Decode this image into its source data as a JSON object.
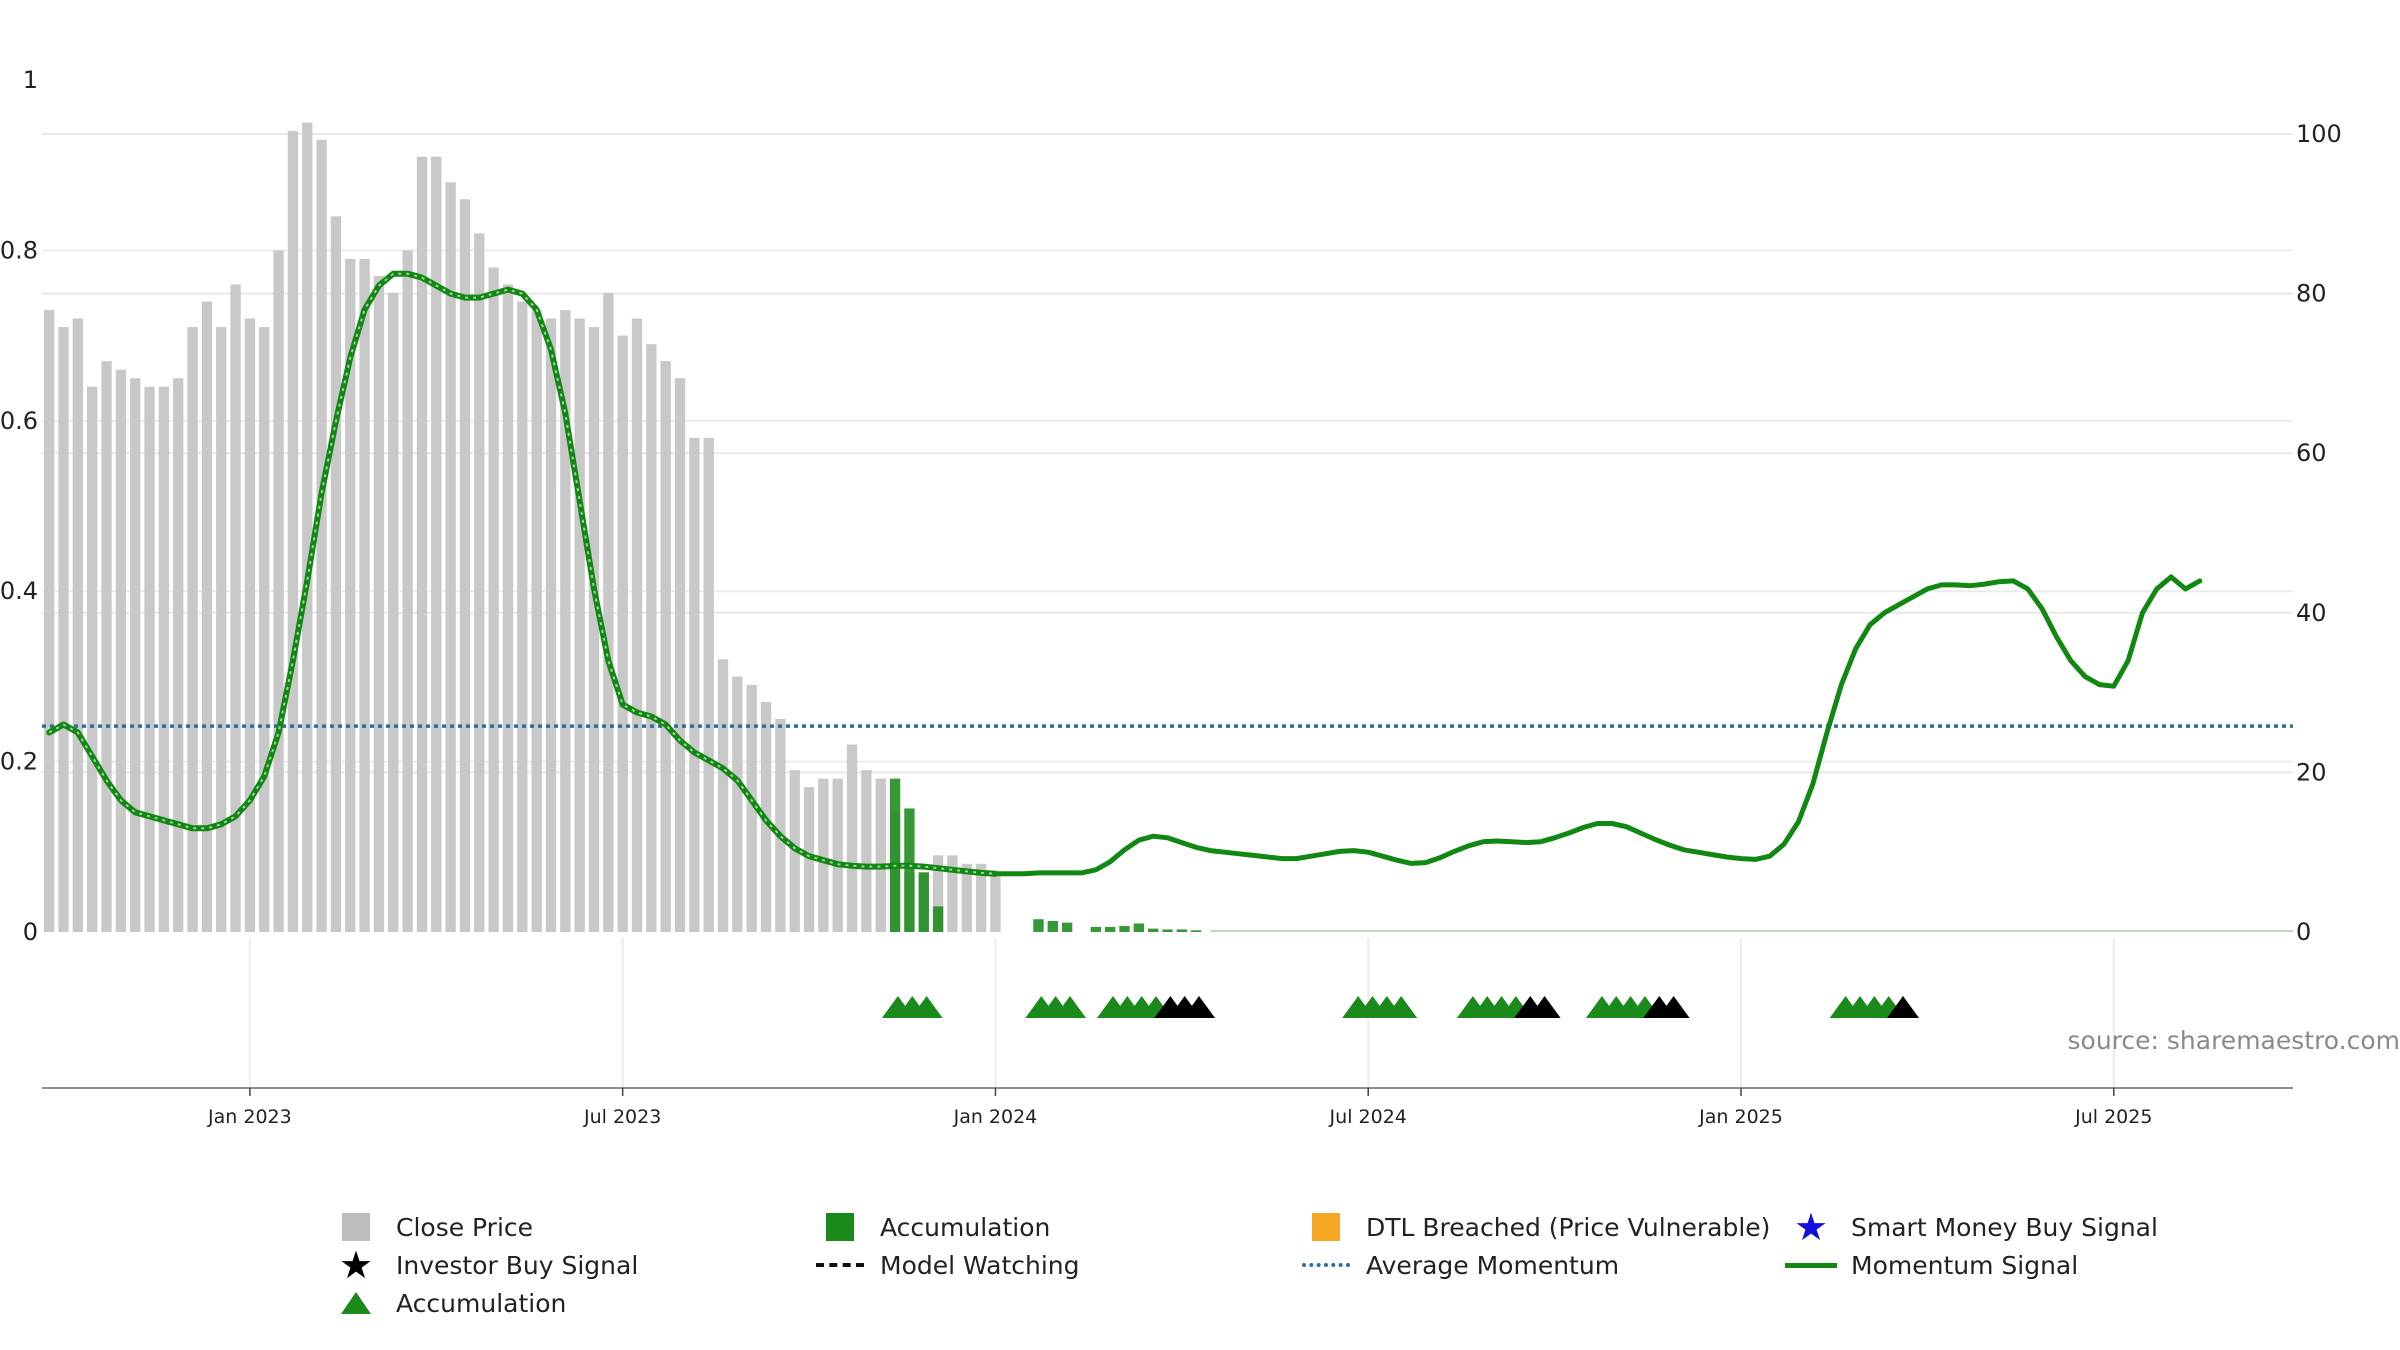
{
  "chart_data": {
    "type": "bar",
    "title": "",
    "source": "source: sharemaestro.com",
    "left_axis": {
      "ticks": [
        "0",
        "0.2",
        "0.4",
        "0.6",
        "0.8",
        "1"
      ],
      "range": [
        0,
        1
      ]
    },
    "right_axis": {
      "ticks": [
        "0",
        "20",
        "40",
        "60",
        "80",
        "100"
      ],
      "range": [
        0,
        100
      ]
    },
    "x_labels": [
      {
        "label": "Jan 2023",
        "week": 14
      },
      {
        "label": "Jul 2023",
        "week": 40
      },
      {
        "label": "Jan 2024",
        "week": 66
      },
      {
        "label": "Jul 2024",
        "week": 92
      },
      {
        "label": "Jan 2025",
        "week": 118
      },
      {
        "label": "Jul 2025",
        "week": 144
      }
    ],
    "weeks": 157,
    "close_price": [
      0.73,
      0.71,
      0.72,
      0.64,
      0.67,
      0.66,
      0.65,
      0.64,
      0.64,
      0.65,
      0.71,
      0.74,
      0.71,
      0.76,
      0.72,
      0.71,
      0.8,
      0.94,
      0.95,
      0.93,
      0.84,
      0.79,
      0.79,
      0.77,
      0.75,
      0.8,
      0.91,
      0.91,
      0.88,
      0.86,
      0.82,
      0.78,
      0.76,
      0.74,
      0.73,
      0.72,
      0.73,
      0.72,
      0.71,
      0.75,
      0.7,
      0.72,
      0.69,
      0.67,
      0.65,
      0.58,
      0.58,
      0.32,
      0.3,
      0.29,
      0.27,
      0.25,
      0.19,
      0.17,
      0.18,
      0.18,
      0.22,
      0.19,
      0.18,
      0.14,
      0.07,
      0.07,
      0.09,
      0.09,
      0.08,
      0.08,
      0.07
    ],
    "accumulation_bars": [
      {
        "week": 59,
        "value": 0.18
      },
      {
        "week": 60,
        "value": 0.145
      },
      {
        "week": 61,
        "value": 0.07
      },
      {
        "week": 62,
        "value": 0.03
      },
      {
        "week": 69,
        "value": 0.015
      },
      {
        "week": 70,
        "value": 0.013
      },
      {
        "week": 71,
        "value": 0.011
      },
      {
        "week": 73,
        "value": 0.006
      },
      {
        "week": 74,
        "value": 0.006
      },
      {
        "week": 75,
        "value": 0.007
      },
      {
        "week": 76,
        "value": 0.01
      },
      {
        "week": 77,
        "value": 0.004
      },
      {
        "week": 78,
        "value": 0.003
      },
      {
        "week": 79,
        "value": 0.003
      },
      {
        "week": 80,
        "value": 0.002
      }
    ],
    "average_momentum": 25.8,
    "momentum_signal": [
      [
        0,
        25
      ],
      [
        1,
        26
      ],
      [
        2,
        25
      ],
      [
        3,
        22
      ],
      [
        4,
        19
      ],
      [
        5,
        16.5
      ],
      [
        6,
        15
      ],
      [
        7,
        14.5
      ],
      [
        8,
        14
      ],
      [
        9,
        13.5
      ],
      [
        10,
        13
      ],
      [
        11,
        13
      ],
      [
        12,
        13.5
      ],
      [
        13,
        14.5
      ],
      [
        14,
        16.5
      ],
      [
        15,
        19.5
      ],
      [
        16,
        25
      ],
      [
        17,
        34
      ],
      [
        18,
        44
      ],
      [
        19,
        55
      ],
      [
        20,
        64
      ],
      [
        21,
        72
      ],
      [
        22,
        78
      ],
      [
        23,
        81
      ],
      [
        24,
        82.5
      ],
      [
        25,
        82.5
      ],
      [
        26,
        82
      ],
      [
        27,
        81
      ],
      [
        28,
        80
      ],
      [
        29,
        79.5
      ],
      [
        30,
        79.5
      ],
      [
        31,
        80
      ],
      [
        32,
        80.5
      ],
      [
        33,
        80
      ],
      [
        34,
        78
      ],
      [
        35,
        73
      ],
      [
        36,
        65
      ],
      [
        37,
        54
      ],
      [
        38,
        43
      ],
      [
        39,
        34
      ],
      [
        40,
        28.5
      ],
      [
        41,
        27.5
      ],
      [
        42,
        27
      ],
      [
        43,
        26
      ],
      [
        44,
        24
      ],
      [
        45,
        22.5
      ],
      [
        46,
        21.5
      ],
      [
        47,
        20.5
      ],
      [
        48,
        19
      ],
      [
        49,
        16.5
      ],
      [
        50,
        14
      ],
      [
        51,
        12
      ],
      [
        52,
        10.5
      ],
      [
        53,
        9.5
      ],
      [
        54,
        9
      ],
      [
        55,
        8.5
      ],
      [
        56,
        8.3
      ],
      [
        57,
        8.2
      ],
      [
        58,
        8.2
      ],
      [
        59,
        8.3
      ],
      [
        60,
        8.3
      ],
      [
        61,
        8.2
      ],
      [
        62,
        8
      ],
      [
        63,
        7.8
      ],
      [
        64,
        7.6
      ],
      [
        65,
        7.4
      ],
      [
        66,
        7.3
      ],
      [
        67,
        7.3
      ],
      [
        68,
        7.3
      ],
      [
        69,
        7.4
      ],
      [
        70,
        7.4
      ],
      [
        71,
        7.4
      ],
      [
        72,
        7.4
      ],
      [
        73,
        7.8
      ],
      [
        74,
        8.8
      ],
      [
        75,
        10.3
      ],
      [
        76,
        11.5
      ],
      [
        77,
        12
      ],
      [
        78,
        11.8
      ],
      [
        79,
        11.2
      ],
      [
        80,
        10.6
      ],
      [
        81,
        10.2
      ],
      [
        82,
        10
      ],
      [
        83,
        9.8
      ],
      [
        84,
        9.6
      ],
      [
        85,
        9.4
      ],
      [
        86,
        9.2
      ],
      [
        87,
        9.2
      ],
      [
        88,
        9.5
      ],
      [
        89,
        9.8
      ],
      [
        90,
        10.1
      ],
      [
        91,
        10.2
      ],
      [
        92,
        10
      ],
      [
        93,
        9.5
      ],
      [
        94,
        9
      ],
      [
        95,
        8.6
      ],
      [
        96,
        8.7
      ],
      [
        97,
        9.3
      ],
      [
        98,
        10.1
      ],
      [
        99,
        10.8
      ],
      [
        100,
        11.3
      ],
      [
        101,
        11.4
      ],
      [
        102,
        11.3
      ],
      [
        103,
        11.2
      ],
      [
        104,
        11.3
      ],
      [
        105,
        11.8
      ],
      [
        106,
        12.4
      ],
      [
        107,
        13.1
      ],
      [
        108,
        13.6
      ],
      [
        109,
        13.6
      ],
      [
        110,
        13.2
      ],
      [
        111,
        12.4
      ],
      [
        112,
        11.6
      ],
      [
        113,
        10.9
      ],
      [
        114,
        10.3
      ],
      [
        115,
        10
      ],
      [
        116,
        9.7
      ],
      [
        117,
        9.4
      ],
      [
        118,
        9.2
      ],
      [
        119,
        9.1
      ],
      [
        120,
        9.5
      ],
      [
        121,
        11
      ],
      [
        122,
        13.8
      ],
      [
        123,
        18.5
      ],
      [
        124,
        25
      ],
      [
        125,
        31
      ],
      [
        126,
        35.5
      ],
      [
        127,
        38.5
      ],
      [
        128,
        40
      ],
      [
        129,
        41
      ],
      [
        130,
        42
      ],
      [
        131,
        43
      ],
      [
        132,
        43.5
      ],
      [
        133,
        43.5
      ],
      [
        134,
        43.4
      ],
      [
        135,
        43.6
      ],
      [
        136,
        43.9
      ],
      [
        137,
        44
      ],
      [
        138,
        43
      ],
      [
        139,
        40.5
      ],
      [
        140,
        37
      ],
      [
        141,
        34
      ],
      [
        142,
        32
      ],
      [
        143,
        31
      ],
      [
        144,
        30.8
      ],
      [
        145,
        34
      ],
      [
        146,
        40
      ],
      [
        147,
        43
      ],
      [
        148,
        44.5
      ],
      [
        149,
        43
      ],
      [
        150,
        44
      ]
    ],
    "signals": [
      {
        "week": 59.2,
        "type": "accumulation"
      },
      {
        "week": 60.2,
        "type": "accumulation"
      },
      {
        "week": 61.2,
        "type": "accumulation"
      },
      {
        "week": 69.2,
        "type": "accumulation"
      },
      {
        "week": 70.2,
        "type": "accumulation"
      },
      {
        "week": 71.2,
        "type": "accumulation"
      },
      {
        "week": 74.2,
        "type": "accumulation"
      },
      {
        "week": 75.2,
        "type": "accumulation"
      },
      {
        "week": 76.2,
        "type": "accumulation"
      },
      {
        "week": 77.2,
        "type": "accumulation"
      },
      {
        "week": 78.2,
        "type": "investor"
      },
      {
        "week": 79.2,
        "type": "investor"
      },
      {
        "week": 80.2,
        "type": "investor"
      },
      {
        "week": 91.3,
        "type": "accumulation"
      },
      {
        "week": 92.3,
        "type": "accumulation"
      },
      {
        "week": 93.3,
        "type": "accumulation"
      },
      {
        "week": 94.3,
        "type": "accumulation"
      },
      {
        "week": 99.3,
        "type": "accumulation"
      },
      {
        "week": 100.3,
        "type": "accumulation"
      },
      {
        "week": 101.3,
        "type": "accumulation"
      },
      {
        "week": 102.3,
        "type": "accumulation"
      },
      {
        "week": 103.3,
        "type": "investor"
      },
      {
        "week": 104.3,
        "type": "investor"
      },
      {
        "week": 108.3,
        "type": "accumulation"
      },
      {
        "week": 109.3,
        "type": "accumulation"
      },
      {
        "week": 110.3,
        "type": "accumulation"
      },
      {
        "week": 111.3,
        "type": "accumulation"
      },
      {
        "week": 112.3,
        "type": "investor"
      },
      {
        "week": 113.3,
        "type": "investor"
      },
      {
        "week": 125.3,
        "type": "accumulation"
      },
      {
        "week": 126.3,
        "type": "accumulation"
      },
      {
        "week": 127.3,
        "type": "accumulation"
      },
      {
        "week": 128.3,
        "type": "accumulation"
      },
      {
        "week": 129.3,
        "type": "investor"
      }
    ],
    "colors": {
      "close_price": "#c8c8c8",
      "accumulation": "#1a8a1a",
      "dtl": "#f5a623",
      "smart_money": "#1111dd",
      "investor": "#000000",
      "avg_momentum": "#2f6fa0",
      "momentum": "#118811"
    },
    "legend": [
      {
        "label": "Close Price",
        "symbol": "square-gray"
      },
      {
        "label": "Accumulation",
        "symbol": "square-green"
      },
      {
        "label": "DTL Breached (Price Vulnerable)",
        "symbol": "square-orange"
      },
      {
        "label": "Smart Money Buy Signal",
        "symbol": "star-blue"
      },
      {
        "label": "Investor Buy Signal",
        "symbol": "star-black"
      },
      {
        "label": "Model Watching",
        "symbol": "dashed-black"
      },
      {
        "label": "Average Momentum",
        "symbol": "dotted-blue"
      },
      {
        "label": "Momentum Signal",
        "symbol": "line-green"
      },
      {
        "label": "Accumulation",
        "symbol": "triangle-green"
      }
    ]
  }
}
